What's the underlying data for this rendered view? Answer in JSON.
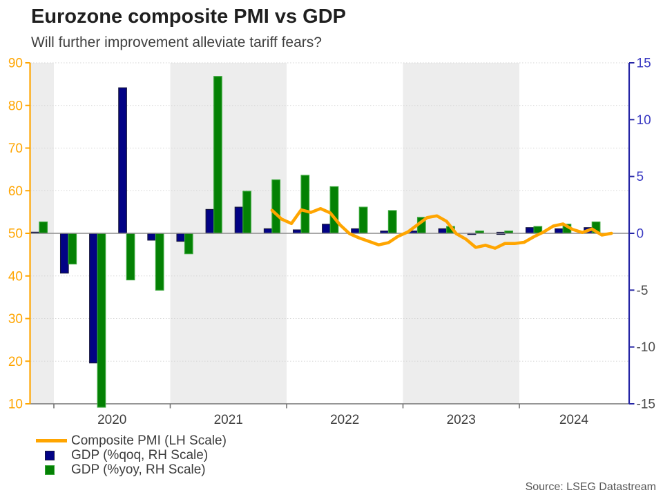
{
  "source_note": "Source: LSEG Datastream",
  "chart_data": {
    "type": "mixed",
    "title": "Eurozone composite PMI vs GDP",
    "subtitle": "Will further improvement alleviate tariff fears?",
    "left_axis": {
      "series": "Composite PMI",
      "min": 10,
      "max": 90,
      "tick_step": 10,
      "tick_labels": [
        "90",
        "80",
        "70",
        "60",
        "50",
        "40",
        "30",
        "20",
        "10"
      ],
      "color": "#FFA500"
    },
    "right_axis": {
      "series": "GDP growth %",
      "min": -15,
      "max": 15,
      "tick_step": 5,
      "tick_labels": [
        "15",
        "10",
        "5",
        "0",
        "-5",
        "-10",
        "-15"
      ],
      "axis_color": "#2525A5",
      "positive_label_color": "#3939C2",
      "negative_label_color": "#4D4D4D"
    },
    "x_axis": {
      "year_labels": [
        "2020",
        "2021",
        "2022",
        "2023",
        "2024"
      ],
      "shaded_band_years": [
        "2019",
        "2021",
        "2023"
      ],
      "band_color": "#EDEDED",
      "label_color": "#3F3F3F"
    },
    "gridlines": {
      "levels_lh": [
        20,
        30,
        40,
        60,
        70,
        80,
        90
      ],
      "style": "dashed",
      "color": "#D4D4D4",
      "zero_line_color": "#8C8C8C"
    },
    "series": [
      {
        "name": "Composite PMI (LH Scale)",
        "type": "line",
        "axis": "left",
        "color": "#FFA500",
        "months": [
          "Nov 2021",
          "Dec 2021",
          "Jan 2022",
          "Feb 2022",
          "Mar 2022",
          "Apr 2022",
          "May 2022",
          "Jun 2022",
          "Jul 2022",
          "Aug 2022",
          "Sep 2022",
          "Oct 2022",
          "Nov 2022",
          "Dec 2022",
          "Jan 2023",
          "Feb 2023",
          "Mar 2023",
          "Apr 2023",
          "May 2023",
          "Jun 2023",
          "Jul 2023",
          "Aug 2023",
          "Sep 2023",
          "Oct 2023",
          "Nov 2023",
          "Dec 2023",
          "Jan 2024",
          "Feb 2024",
          "Mar 2024",
          "Apr 2024",
          "May 2024",
          "Jun 2024",
          "Jul 2024",
          "Aug 2024",
          "Sep 2024",
          "Oct 2024"
        ],
        "values": [
          55.4,
          53.3,
          52.3,
          55.5,
          54.9,
          55.8,
          54.8,
          52.0,
          49.9,
          48.9,
          48.1,
          47.3,
          47.8,
          49.3,
          50.3,
          52.0,
          53.7,
          54.1,
          52.8,
          49.9,
          48.6,
          46.7,
          47.2,
          46.5,
          47.6,
          47.6,
          47.9,
          49.2,
          50.3,
          51.7,
          52.2,
          50.9,
          50.2,
          51.0,
          49.6,
          50.0
        ]
      },
      {
        "name": "GDP (%qoq, RH Scale)",
        "type": "bar",
        "axis": "right",
        "color": "#020285",
        "edge_color": "#15153E",
        "quarters": [
          "2019 Q4",
          "2020 Q1",
          "2020 Q2",
          "2020 Q3",
          "2020 Q4",
          "2021 Q1",
          "2021 Q2",
          "2021 Q3",
          "2021 Q4",
          "2022 Q1",
          "2022 Q2",
          "2022 Q3",
          "2022 Q4",
          "2023 Q1",
          "2023 Q2",
          "2023 Q3",
          "2023 Q4",
          "2024 Q1",
          "2024 Q2",
          "2024 Q3"
        ],
        "values": [
          0.1,
          -3.5,
          -11.4,
          12.8,
          -0.6,
          -0.7,
          2.1,
          2.3,
          0.4,
          0.3,
          0.8,
          0.4,
          0.2,
          0.2,
          0.4,
          -0.1,
          0.0,
          0.5,
          0.4,
          0.5
        ]
      },
      {
        "name": "GDP (%yoy, RH Scale)",
        "type": "bar",
        "axis": "right",
        "color": "#048104",
        "edge_color": "#35A435",
        "quarters": [
          "2019 Q4",
          "2020 Q1",
          "2020 Q2",
          "2020 Q3",
          "2020 Q4",
          "2021 Q1",
          "2021 Q2",
          "2021 Q3",
          "2021 Q4",
          "2022 Q1",
          "2022 Q2",
          "2022 Q3",
          "2022 Q4",
          "2023 Q1",
          "2023 Q2",
          "2023 Q3",
          "2023 Q4",
          "2024 Q1",
          "2024 Q2",
          "2024 Q3"
        ],
        "values": [
          1.0,
          -2.7,
          -15.3,
          -4.1,
          -5.0,
          -1.8,
          13.8,
          3.7,
          4.7,
          5.1,
          4.1,
          2.3,
          2.0,
          1.4,
          0.6,
          0.2,
          0.2,
          0.6,
          0.8,
          1.0
        ]
      }
    ]
  }
}
